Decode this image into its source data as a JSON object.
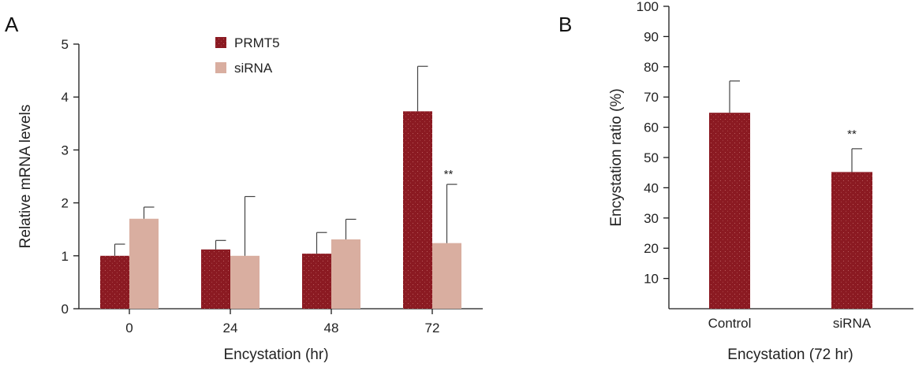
{
  "colors": {
    "prmt5": "#8b1a22",
    "sirna": "#d9aea0",
    "bar_b": "#8b1a22"
  },
  "chart_data": [
    {
      "panel": "A",
      "type": "bar",
      "title": "",
      "xlabel": "Encystation (hr)",
      "ylabel": "Relative mRNA levels",
      "ylim": [
        0,
        5
      ],
      "yticks": [
        "0",
        "1",
        "2",
        "3",
        "4",
        "5"
      ],
      "categories": [
        "0",
        "24",
        "48",
        "72"
      ],
      "legend": "top-center",
      "series": [
        {
          "name": "PRMT5",
          "values": [
            1.0,
            1.12,
            1.04,
            3.73
          ],
          "errors": [
            0.22,
            0.17,
            0.4,
            0.85
          ]
        },
        {
          "name": "siRNA",
          "values": [
            1.7,
            1.0,
            1.31,
            1.24
          ],
          "errors": [
            0.22,
            1.12,
            0.38,
            1.11
          ]
        }
      ],
      "annotations": [
        {
          "category": "72",
          "series": "siRNA",
          "text": "**"
        }
      ]
    },
    {
      "panel": "B",
      "type": "bar",
      "title": "",
      "xlabel": "Encystation (72 hr)",
      "ylabel": "Encystation ratio (%)",
      "ylim": [
        0,
        100
      ],
      "yticks": [
        "10",
        "20",
        "30",
        "40",
        "50",
        "60",
        "70",
        "80",
        "90",
        "100"
      ],
      "categories": [
        "Control",
        "siRNA"
      ],
      "series": [
        {
          "name": "Encystation ratio",
          "values": [
            64.8,
            45.2
          ],
          "errors": [
            10.5,
            7.7
          ]
        }
      ],
      "annotations": [
        {
          "category": "siRNA",
          "text": "**"
        }
      ]
    }
  ]
}
